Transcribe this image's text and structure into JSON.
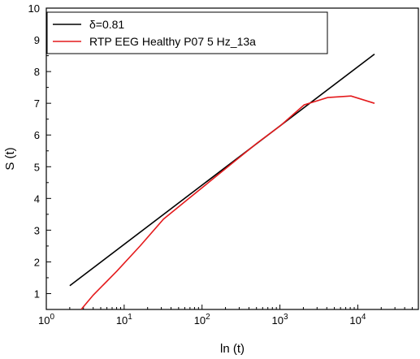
{
  "chart_data": {
    "type": "line",
    "xlabel": "ln (t)",
    "ylabel": "S (t)",
    "xscale": "log",
    "xlim": [
      1,
      60000
    ],
    "ylim": [
      0.5,
      10
    ],
    "grid": false,
    "legend_position": "top-left",
    "x_tick_labels": [
      {
        "value": 1,
        "base": "10",
        "exp": "0"
      },
      {
        "value": 10,
        "base": "10",
        "exp": "1"
      },
      {
        "value": 100,
        "base": "10",
        "exp": "2"
      },
      {
        "value": 1000,
        "base": "10",
        "exp": "3"
      },
      {
        "value": 10000,
        "base": "10",
        "exp": "4"
      }
    ],
    "y_ticks": [
      1,
      2,
      3,
      4,
      5,
      6,
      7,
      8,
      9,
      10
    ],
    "series": [
      {
        "name": "δ=0.81",
        "color": "#000000",
        "x": [
          2,
          16384
        ],
        "y": [
          1.25,
          8.55
        ]
      },
      {
        "name": "RTP EEG Healthy P07 5 Hz_13a",
        "color": "#e41a1c",
        "x": [
          2.8,
          4,
          8,
          16,
          32,
          64,
          128,
          256,
          512,
          1024,
          2048,
          4096,
          8192,
          16384
        ],
        "y": [
          0.5,
          0.95,
          1.7,
          2.5,
          3.35,
          3.95,
          4.55,
          5.15,
          5.75,
          6.3,
          6.95,
          7.18,
          7.23,
          7.0
        ]
      }
    ]
  }
}
